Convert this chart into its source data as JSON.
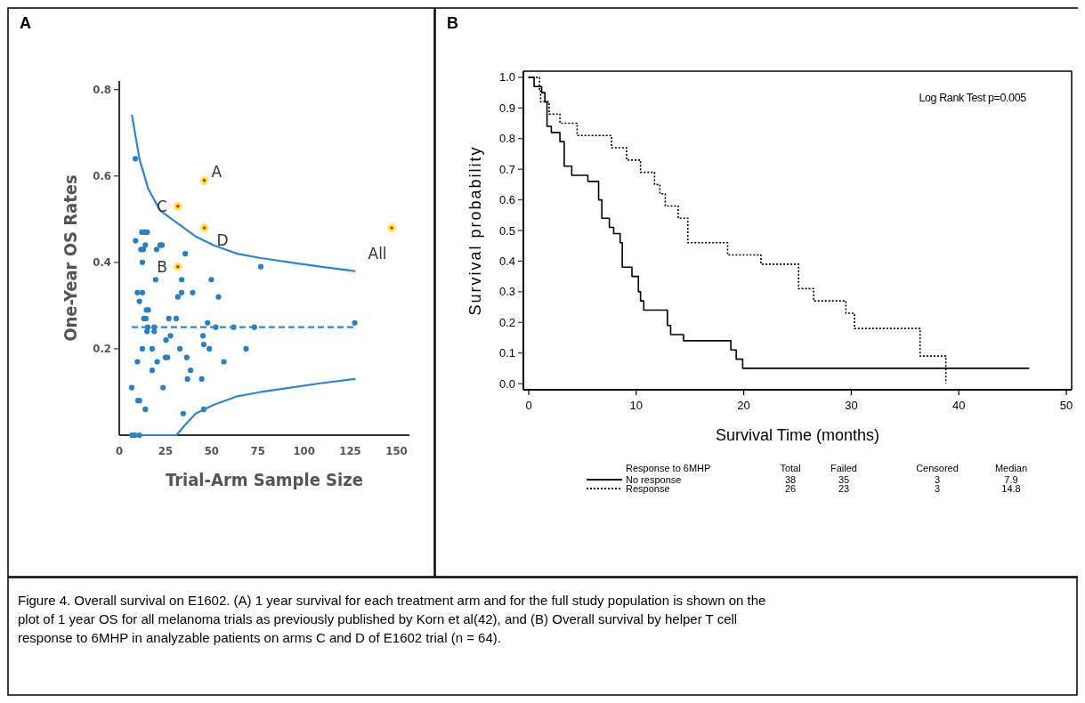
{
  "chart_data": [
    {
      "type": "scatter",
      "title": "A",
      "xlabel": "Trial-Arm Sample Size",
      "ylabel": "One-Year OS Rates",
      "xlim": [
        0,
        157
      ],
      "ylim": [
        0,
        0.82
      ],
      "xticks": [
        0,
        25,
        50,
        75,
        100,
        125,
        150
      ],
      "yticks": [
        0.2,
        0.4,
        0.6,
        0.8
      ],
      "series": [
        {
          "marker": "circle",
          "color": "#2a7fc1",
          "x": [
            8.7,
            8.8,
            12.2,
            13.8,
            15.1,
            11.7,
            13,
            14.1,
            12.5,
            20.2,
            22.1,
            23.1,
            19.7,
            9.8,
            12.5,
            10.9,
            14.7,
            15.7,
            13.3,
            14.4,
            15,
            18.9,
            12.5,
            17.8,
            9.8,
            20.5,
            17.8,
            6.7,
            10.1,
            10.9,
            14.1,
            23.7,
            6.9,
            8.5,
            10.9,
            25.3,
            25,
            26.1,
            26.8,
            27.7,
            30.8,
            31.7,
            33.7,
            33.8,
            35.7,
            32.8,
            36.5,
            36.9,
            38.6,
            34.6,
            39.7,
            45.3,
            45.7,
            48.7,
            44.6,
            45.7,
            47.8,
            52.2,
            49.8,
            53.7,
            56.6,
            61.9,
            68.6,
            73.1,
            76.6,
            127.4,
            15.4,
            18.9
          ],
          "values": [
            0.64,
            0.45,
            0.47,
            0.47,
            0.47,
            0.43,
            0.43,
            0.44,
            0.4,
            0.43,
            0.44,
            0.44,
            0.36,
            0.33,
            0.33,
            0.31,
            0.29,
            0.29,
            0.27,
            0.27,
            0.24,
            0.24,
            0.2,
            0.2,
            0.17,
            0.17,
            0.15,
            0.11,
            0.08,
            0.08,
            0.06,
            0.11,
            0,
            0,
            0,
            0.22,
            0.18,
            0.18,
            0.27,
            0.23,
            0.27,
            0.32,
            0.33,
            0.36,
            0.42,
            0.2,
            0.18,
            0.13,
            0.15,
            0.05,
            0.33,
            0.23,
            0.21,
            0.2,
            0.13,
            0.06,
            0.26,
            0.25,
            0.36,
            0.32,
            0.17,
            0.25,
            0.2,
            0.25,
            0.39,
            0.26,
            0.25,
            0.25
          ]
        },
        {
          "marker": "circle",
          "color": "#e8251f",
          "x": [
            46,
            31.7,
            46,
            31.7,
            147.4
          ],
          "values": [
            0.59,
            0.53,
            0.48,
            0.39,
            0.48
          ]
        },
        {
          "type": "line",
          "line_style": "solid",
          "color": "#2e86c8",
          "x": [
            6.9,
            10.9,
            15.7,
            22.1,
            31.7,
            41.3,
            51,
            63.8,
            76.6,
            92.6,
            108.7,
            127.4
          ],
          "values": [
            0.74,
            0.64,
            0.57,
            0.52,
            0.49,
            0.46,
            0.44,
            0.42,
            0.41,
            0.4,
            0.39,
            0.38
          ]
        },
        {
          "type": "line",
          "line_style": "solid",
          "color": "#2e86c8",
          "x": [
            6.9,
            30.9,
            34.9,
            41.3,
            51,
            63.8,
            76.6,
            92.6,
            108.7,
            127.4
          ],
          "values": [
            0,
            0,
            0.02,
            0.05,
            0.07,
            0.09,
            0.1,
            0.11,
            0.12,
            0.13
          ]
        },
        {
          "type": "line",
          "line_style": "dashed",
          "color": "#2e86c8",
          "x": [
            6.7,
            127.4
          ],
          "values": [
            0.25,
            0.25
          ]
        }
      ],
      "annotations": [
        {
          "text": "A",
          "x": 46,
          "y": 0.59
        },
        {
          "text": "C",
          "x": 31.7,
          "y": 0.53
        },
        {
          "text": "D",
          "x": 46,
          "y": 0.48
        },
        {
          "text": "B",
          "x": 31.7,
          "y": 0.39
        },
        {
          "text": "All",
          "x": 147.4,
          "y": 0.48
        },
        "Figure 4.   Overall survival on E1602.  (A) 1 year survival for each treatment arm and for the full study population is shown on the plot of 1 year OS for all melanoma trials as previously published by Korn et al(42), and (B) Overall survival by helper T cell response to 6MHP in analyzable patients on arms C and D of E1602 trial (n = 64)."
      ]
    },
    {
      "type": "step",
      "title": "B",
      "xlabel": "Survival Time (months)",
      "ylabel": "Survival probability",
      "legend_title": "Response to 6MHP",
      "legend": "bottom",
      "xlim": [
        -0.5,
        50.5
      ],
      "ylim": [
        -0.02,
        1.02
      ],
      "xticks": [
        0,
        10,
        20,
        30,
        40,
        50
      ],
      "yticks": [
        {
          "value": 0,
          "label": "0.0"
        },
        0.1,
        0.2,
        0.3,
        0.4,
        0.5,
        0.6,
        0.7,
        0.8,
        0.9,
        {
          "value": 1,
          "label": "1.0"
        }
      ],
      "series": [
        {
          "name": "No response",
          "line_style": "solid",
          "color": "#000000",
          "x": [
            0,
            0.5,
            1.2,
            1.5,
            1.7,
            2.1,
            2.9,
            3.3,
            3.3,
            4,
            5.5,
            6.5,
            6.8,
            7.5,
            7.9,
            8.5,
            8.7,
            9.6,
            10.2,
            10.4,
            10.7,
            12.9,
            13.2,
            14.4,
            18.8,
            19.3,
            19.9,
            46.5
          ],
          "values": [
            1,
            0.97,
            0.95,
            0.92,
            0.84,
            0.82,
            0.79,
            0.74,
            0.71,
            0.68,
            0.66,
            0.6,
            0.54,
            0.51,
            0.49,
            0.46,
            0.38,
            0.35,
            0.3,
            0.27,
            0.24,
            0.19,
            0.16,
            0.14,
            0.11,
            0.08,
            0.05,
            0.05
          ]
        },
        {
          "name": "Response",
          "line_style": "dotted",
          "color": "#000000",
          "x": [
            0,
            1,
            1.1,
            1.9,
            2.9,
            4.5,
            7.7,
            9.1,
            10.4,
            11.7,
            12.2,
            12.7,
            13.9,
            14.8,
            18.5,
            21.6,
            25.1,
            26.5,
            29.5,
            30.3,
            36.4,
            38.8
          ],
          "values": [
            1,
            0.96,
            0.92,
            0.88,
            0.85,
            0.81,
            0.77,
            0.73,
            0.69,
            0.65,
            0.62,
            0.58,
            0.54,
            0.46,
            0.42,
            0.39,
            0.31,
            0.27,
            0.23,
            0.18,
            0.09,
            0
          ]
        }
      ],
      "annotations": [
        "Log Rank Test p=0.005",
        "Total",
        "Failed",
        "Censored",
        "Median",
        "38",
        "35",
        "3",
        "7.9",
        "26",
        "23",
        "3",
        "14.8"
      ]
    }
  ]
}
